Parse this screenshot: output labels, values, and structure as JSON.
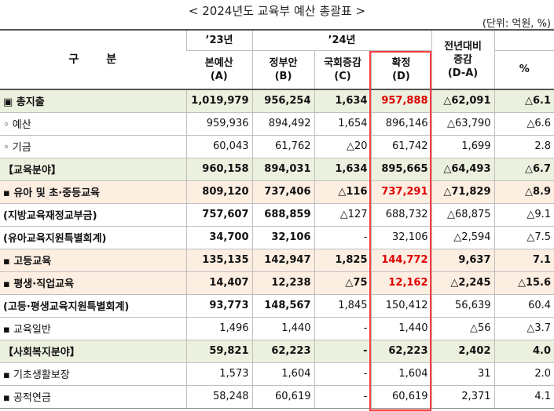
{
  "title": "< 2024년도 교육부 예산 총괄표 >",
  "unit": "(단위: 억원, %)",
  "header": {
    "gubun": [
      "구",
      "분"
    ],
    "y23": "’23년",
    "y24": "’24년",
    "change_line1": "전년대비",
    "change_line2": "증감",
    "change_line3": "(D-A)",
    "percent": "%",
    "cols": [
      {
        "line1": "본예산",
        "line2": "(A)"
      },
      {
        "line1": "정부안",
        "line2": "(B)"
      },
      {
        "line1": "국회증감",
        "line2": "(C)"
      },
      {
        "line1": "확정",
        "line2": "(D)"
      }
    ]
  },
  "colors": {
    "highlight_red": "#e00000",
    "box_red": "#ff3b3b",
    "green_row": "#ebf1de",
    "peach_row": "#fdeee2"
  },
  "rows": [
    {
      "label": "▣ 총지출",
      "a": "1,019,979",
      "b": "956,254",
      "c": "1,634",
      "d": "957,888",
      "da": "△62,091",
      "pct": "△6.1",
      "style": "green",
      "bold": true,
      "d_red": true
    },
    {
      "label": "◦ 예산",
      "a": "959,936",
      "b": "894,492",
      "c": "1,654",
      "d": "896,146",
      "da": "△63,790",
      "pct": "△6.6",
      "style": "",
      "bold": false,
      "d_red": false
    },
    {
      "label": "◦ 기금",
      "a": "60,043",
      "b": "61,762",
      "c": "△20",
      "d": "61,742",
      "da": "1,699",
      "pct": "2.8",
      "style": "",
      "bold": false,
      "d_red": false
    },
    {
      "label": "【교육분야】",
      "a": "960,158",
      "b": "894,031",
      "c": "1,634",
      "d": "895,665",
      "da": "△64,493",
      "pct": "△6.7",
      "style": "green",
      "bold": true,
      "d_red": false
    },
    {
      "label": " ▪ 유아 및 초·중등교육",
      "a": "809,120",
      "b": "737,406",
      "c": "△116",
      "d": "737,291",
      "da": "△71,829",
      "pct": "△8.9",
      "style": "peach",
      "bold": true,
      "d_red": true
    },
    {
      "label": "(지방교육재정교부금)",
      "a": "757,607",
      "b": "688,859",
      "c": "△127",
      "d": "688,732",
      "da": "△68,875",
      "pct": "△9.1",
      "style": "",
      "bold": "ab",
      "d_red": false
    },
    {
      "label": "(유아교육지원특별회계)",
      "a": "34,700",
      "b": "32,106",
      "c": "-",
      "d": "32,106",
      "da": "△2,594",
      "pct": "△7.5",
      "style": "",
      "bold": "ab",
      "d_red": false
    },
    {
      "label": " ▪ 고등교육",
      "a": "135,135",
      "b": "142,947",
      "c": "1,825",
      "d": "144,772",
      "da": "9,637",
      "pct": "7.1",
      "style": "peach",
      "bold": true,
      "d_red": true
    },
    {
      "label": " ▪ 평생·직업교육",
      "a": "14,407",
      "b": "12,238",
      "c": "△75",
      "d": "12,162",
      "da": "△2,245",
      "pct": "△15.6",
      "style": "peach",
      "bold": true,
      "d_red": true
    },
    {
      "label": "(고등·평생교육지원특별회계)",
      "a": "93,773",
      "b": "148,567",
      "c": "1,845",
      "d": "150,412",
      "da": "56,639",
      "pct": "60.4",
      "style": "",
      "bold": "ab",
      "d_red": false
    },
    {
      "label": " ▪ 교육일반",
      "a": "1,496",
      "b": "1,440",
      "c": "-",
      "d": "1,440",
      "da": "△56",
      "pct": "△3.7",
      "style": "",
      "bold": false,
      "d_red": false
    },
    {
      "label": "【사회복지분야】",
      "a": "59,821",
      "b": "62,223",
      "c": "-",
      "d": "62,223",
      "da": "2,402",
      "pct": "4.0",
      "style": "green",
      "bold": true,
      "d_red": false
    },
    {
      "label": " ▪ 기초생활보장",
      "a": "1,573",
      "b": "1,604",
      "c": "-",
      "d": "1,604",
      "da": "31",
      "pct": "2.0",
      "style": "",
      "bold": false,
      "d_red": false
    },
    {
      "label": " ▪ 공적연금",
      "a": "58,248",
      "b": "60,619",
      "c": "-",
      "d": "60,619",
      "da": "2,371",
      "pct": "4.1",
      "style": "",
      "bold": false,
      "d_red": false
    }
  ]
}
